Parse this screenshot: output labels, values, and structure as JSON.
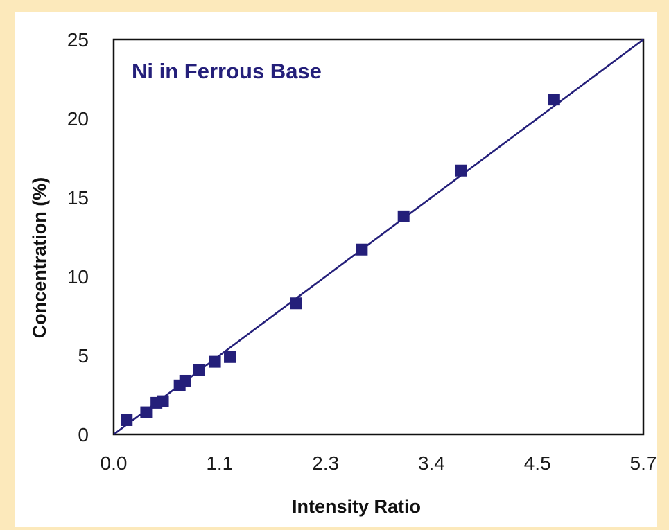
{
  "chart_data": {
    "type": "scatter",
    "title": "Ni in Ferrous Base",
    "xlabel": "Intensity Ratio",
    "ylabel": "Concentration (%)",
    "xlim": [
      0.0,
      5.7
    ],
    "ylim": [
      0,
      25
    ],
    "x_ticks": [
      "0.0",
      "1.1",
      "2.3",
      "3.4",
      "4.5",
      "5.7"
    ],
    "x_tick_values": [
      0.0,
      1.14,
      2.28,
      3.42,
      4.56,
      5.7
    ],
    "y_ticks": [
      "0",
      "5",
      "10",
      "15",
      "20",
      "25"
    ],
    "y_tick_values": [
      0,
      5,
      10,
      15,
      20,
      25
    ],
    "grid": false,
    "colors": {
      "series": "#241f7a",
      "background": "#ffffff",
      "border": "#fce9bb"
    },
    "fit_line": {
      "x": [
        0.0,
        5.7
      ],
      "y": [
        0.0,
        25.0
      ]
    },
    "series": [
      {
        "x": [
          0.14,
          0.35,
          0.46,
          0.53,
          0.71,
          0.77,
          0.92,
          1.09,
          1.25,
          1.96,
          2.67,
          3.12,
          3.74,
          4.74
        ],
        "y": [
          0.9,
          1.4,
          2.0,
          2.1,
          3.1,
          3.4,
          4.1,
          4.6,
          4.9,
          8.3,
          11.7,
          13.8,
          16.7,
          21.2
        ]
      }
    ]
  }
}
